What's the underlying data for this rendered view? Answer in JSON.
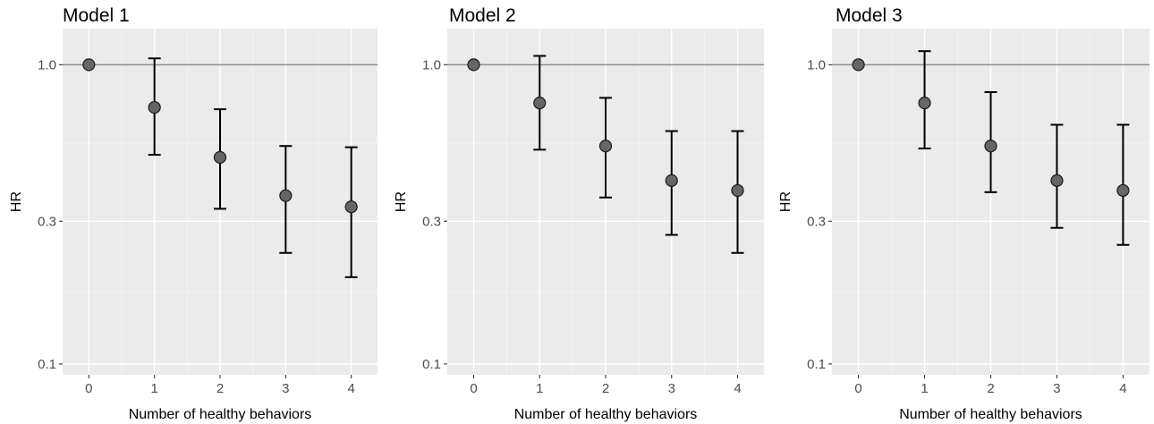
{
  "colors": {
    "panel_background": "#ebebeb",
    "major_grid": "#ffffff",
    "minor_grid": "#f5f5f5",
    "reference_line": "#8c8c8c",
    "point_fill": "#666666",
    "point_stroke": "#1a1a1a",
    "errorbar": "#000000"
  },
  "chart_data": [
    {
      "type": "scatter",
      "title": "Model 1",
      "xlabel": "Number of healthy behaviors",
      "ylabel": "HR",
      "y_scale": "log",
      "ylim": [
        0.092,
        1.32
      ],
      "xlim": [
        -0.4,
        4.4
      ],
      "grid": true,
      "x_ticks": [
        "0",
        "1",
        "2",
        "3",
        "4"
      ],
      "y_ticks": [
        "0.1",
        "0.3",
        "1.0"
      ],
      "reference_line_y": 1.0,
      "x": [
        0,
        1,
        2,
        3,
        4
      ],
      "hr": [
        1.0,
        0.72,
        0.49,
        0.365,
        0.335
      ],
      "lower": [
        1.0,
        0.5,
        0.33,
        0.235,
        0.195
      ],
      "upper": [
        1.0,
        1.05,
        0.71,
        0.535,
        0.53
      ]
    },
    {
      "type": "scatter",
      "title": "Model 2",
      "xlabel": "Number of healthy behaviors",
      "ylabel": "HR",
      "y_scale": "log",
      "ylim": [
        0.092,
        1.32
      ],
      "xlim": [
        -0.4,
        4.4
      ],
      "grid": true,
      "x_ticks": [
        "0",
        "1",
        "2",
        "3",
        "4"
      ],
      "y_ticks": [
        "0.1",
        "0.3",
        "1.0"
      ],
      "reference_line_y": 1.0,
      "x": [
        0,
        1,
        2,
        3,
        4
      ],
      "hr": [
        1.0,
        0.745,
        0.535,
        0.41,
        0.38
      ],
      "lower": [
        1.0,
        0.52,
        0.36,
        0.27,
        0.235
      ],
      "upper": [
        1.0,
        1.07,
        0.775,
        0.6,
        0.6
      ]
    },
    {
      "type": "scatter",
      "title": "Model 3",
      "xlabel": "Number of healthy behaviors",
      "ylabel": "HR",
      "y_scale": "log",
      "ylim": [
        0.092,
        1.32
      ],
      "xlim": [
        -0.4,
        4.4
      ],
      "grid": true,
      "x_ticks": [
        "0",
        "1",
        "2",
        "3",
        "4"
      ],
      "y_ticks": [
        "0.1",
        "0.3",
        "1.0"
      ],
      "reference_line_y": 1.0,
      "x": [
        0,
        1,
        2,
        3,
        4
      ],
      "hr": [
        1.0,
        0.745,
        0.535,
        0.41,
        0.38
      ],
      "lower": [
        1.0,
        0.525,
        0.375,
        0.285,
        0.25
      ],
      "upper": [
        1.0,
        1.11,
        0.81,
        0.63,
        0.63
      ]
    }
  ]
}
